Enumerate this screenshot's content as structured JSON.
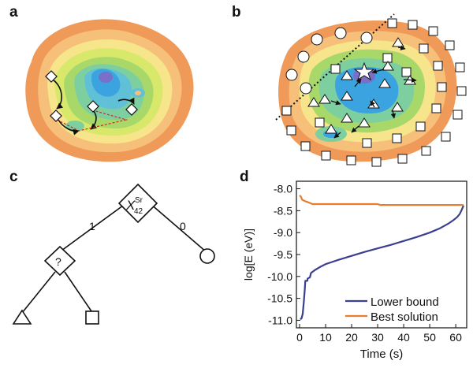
{
  "panels": {
    "a": {
      "label": "a"
    },
    "b": {
      "label": "b"
    },
    "c": {
      "label": "c",
      "root_variable": "X",
      "root_superscript": "Sr",
      "root_subscript": "42",
      "left_branch": "1",
      "right_branch": "0",
      "unknown_node": "?"
    },
    "d": {
      "label": "d"
    }
  },
  "colors": {
    "lower_bound": "#3a3f8f",
    "best_solution": "#e87d2b",
    "contour_levels": [
      "#f09a5a",
      "#f6c07a",
      "#f7e58c",
      "#d7e86a",
      "#a9d86a",
      "#7dcfa0",
      "#5fc0d8",
      "#3aa3e0",
      "#7a6fc8"
    ]
  },
  "chart_data": {
    "type": "line",
    "xlabel": "Time (s)",
    "ylabel": "log[E (eV)]",
    "xlim": [
      0,
      63
    ],
    "ylim": [
      -11.1,
      -7.9
    ],
    "xticks": [
      0,
      10,
      20,
      30,
      40,
      50,
      60
    ],
    "yticks": [
      -8.0,
      -8.5,
      -9.0,
      -9.5,
      -10.0,
      -10.5,
      -11.0
    ],
    "series": [
      {
        "name": "Lower bound",
        "x": [
          0.3,
          0.8,
          1.2,
          1.6,
          2,
          2.2,
          3,
          3.1,
          4,
          4.4,
          6,
          8,
          10,
          12,
          15,
          20,
          25,
          30,
          35,
          40,
          45,
          50,
          54,
          57,
          59,
          60.5,
          61.5,
          62.3,
          63
        ],
        "y": [
          -10.98,
          -10.95,
          -10.85,
          -10.6,
          -10.3,
          -10.1,
          -10.1,
          -10.05,
          -10.02,
          -9.92,
          -9.85,
          -9.78,
          -9.72,
          -9.68,
          -9.62,
          -9.53,
          -9.44,
          -9.36,
          -9.28,
          -9.19,
          -9.1,
          -9.0,
          -8.9,
          -8.8,
          -8.72,
          -8.65,
          -8.58,
          -8.48,
          -8.38
        ]
      },
      {
        "name": "Best solution",
        "x": [
          0,
          0.5,
          1,
          2,
          3,
          5,
          10,
          20,
          30,
          31,
          33,
          40,
          50,
          60,
          63
        ],
        "y": [
          -8.15,
          -8.18,
          -8.25,
          -8.28,
          -8.3,
          -8.35,
          -8.35,
          -8.35,
          -8.35,
          -8.37,
          -8.37,
          -8.37,
          -8.37,
          -8.37,
          -8.37
        ]
      }
    ],
    "legend": [
      "Lower bound",
      "Best solution"
    ],
    "legend_position": "bottom-right"
  }
}
